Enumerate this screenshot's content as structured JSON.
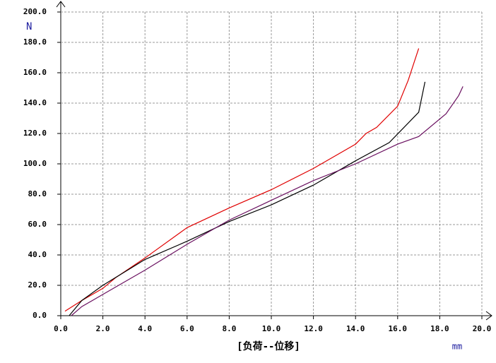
{
  "chart_data": {
    "type": "line",
    "ylabel": "N",
    "xlabel": "[负荷--位移]",
    "xunit": "mm",
    "xlim": [
      0,
      20
    ],
    "ylim": [
      0,
      200
    ],
    "xticks": [
      {
        "value": 0,
        "label": "0.0"
      },
      {
        "value": 2,
        "label": "2.0"
      },
      {
        "value": 4,
        "label": "4.0"
      },
      {
        "value": 6,
        "label": "6.0"
      },
      {
        "value": 8,
        "label": "8.0"
      },
      {
        "value": 10,
        "label": "10.0"
      },
      {
        "value": 12,
        "label": "12.0"
      },
      {
        "value": 14,
        "label": "14.0"
      },
      {
        "value": 16,
        "label": "16.0"
      },
      {
        "value": 18,
        "label": "18.0"
      },
      {
        "value": 20,
        "label": "20.0"
      }
    ],
    "yticks": [
      {
        "value": 0,
        "label": "0.0"
      },
      {
        "value": 20,
        "label": "20.0"
      },
      {
        "value": 40,
        "label": "40.0"
      },
      {
        "value": 60,
        "label": "60.0"
      },
      {
        "value": 80,
        "label": "80.0"
      },
      {
        "value": 100,
        "label": "100.0"
      },
      {
        "value": 120,
        "label": "120.0"
      },
      {
        "value": 140,
        "label": "140.0"
      },
      {
        "value": 160,
        "label": "160.0"
      },
      {
        "value": 180,
        "label": "180.0"
      },
      {
        "value": 200,
        "label": "200.0"
      }
    ],
    "grid": true,
    "series": [
      {
        "color": "#e00000",
        "x": [
          0.2,
          1,
          2,
          2.6,
          4,
          6,
          8,
          10,
          12,
          14,
          14.5,
          15,
          16,
          16.5,
          17
        ],
        "values": [
          3,
          10,
          18,
          25,
          38,
          58,
          71,
          83,
          97,
          113,
          120,
          124,
          138,
          155,
          176
        ]
      },
      {
        "color": "#000000",
        "x": [
          0.4,
          1,
          2,
          4,
          6,
          8,
          10,
          12,
          14,
          15.6,
          17,
          17.3
        ],
        "values": [
          0,
          10,
          20,
          37,
          49,
          62,
          73,
          86,
          102,
          114,
          134,
          154
        ]
      },
      {
        "color": "#6a1060",
        "x": [
          0.5,
          1,
          2,
          4,
          6,
          8,
          10,
          12,
          14,
          16,
          17,
          18.3,
          18.9,
          19.1
        ],
        "values": [
          0,
          6,
          14,
          30,
          47,
          63,
          76,
          89,
          100,
          113,
          118,
          133,
          145,
          151
        ]
      }
    ]
  }
}
